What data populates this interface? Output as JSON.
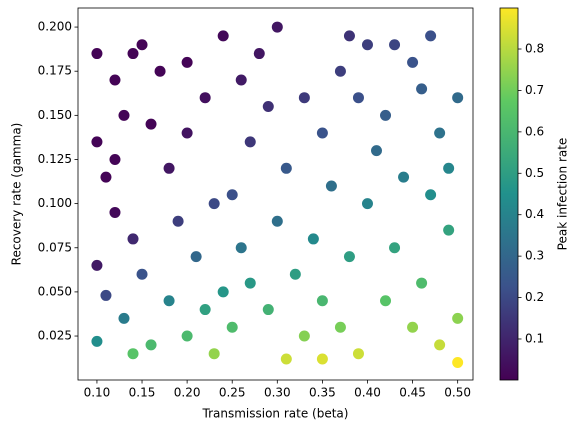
{
  "chart_data": {
    "type": "scatter",
    "x_label": "Transmission rate (beta)",
    "y_label": "Recovery rate (gamma)",
    "colorbar_label": "Peak infection rate",
    "colormap": "viridis",
    "x": [
      0.1,
      0.12,
      0.15,
      0.13,
      0.1,
      0.16,
      0.11,
      0.12,
      0.1,
      0.11,
      0.1,
      0.13,
      0.14,
      0.16,
      0.15,
      0.14,
      0.18,
      0.2,
      0.22,
      0.24,
      0.19,
      0.21,
      0.18,
      0.2,
      0.23,
      0.25,
      0.24,
      0.26,
      0.25,
      0.27,
      0.26,
      0.28,
      0.3,
      0.29,
      0.31,
      0.3,
      0.32,
      0.29,
      0.31,
      0.33,
      0.35,
      0.34,
      0.36,
      0.35,
      0.37,
      0.38,
      0.4,
      0.39,
      0.41,
      0.4,
      0.38,
      0.37,
      0.39,
      0.42,
      0.43,
      0.44,
      0.42,
      0.45,
      0.47,
      0.46,
      0.48,
      0.47,
      0.49,
      0.46,
      0.45,
      0.48,
      0.5,
      0.5,
      0.49,
      0.5,
      0.14,
      0.17,
      0.12,
      0.2,
      0.23,
      0.27,
      0.33,
      0.43,
      0.35,
      0.22
    ],
    "values": [
      0.185,
      0.17,
      0.19,
      0.15,
      0.135,
      0.145,
      0.115,
      0.095,
      0.065,
      0.048,
      0.022,
      0.035,
      0.015,
      0.02,
      0.06,
      0.08,
      0.12,
      0.18,
      0.16,
      0.195,
      0.09,
      0.07,
      0.045,
      0.025,
      0.015,
      0.03,
      0.05,
      0.075,
      0.105,
      0.135,
      0.17,
      0.185,
      0.2,
      0.155,
      0.12,
      0.09,
      0.06,
      0.04,
      0.012,
      0.025,
      0.045,
      0.08,
      0.11,
      0.14,
      0.175,
      0.195,
      0.19,
      0.16,
      0.13,
      0.1,
      0.07,
      0.03,
      0.015,
      0.045,
      0.075,
      0.115,
      0.15,
      0.18,
      0.195,
      0.165,
      0.14,
      0.105,
      0.085,
      0.055,
      0.03,
      0.02,
      0.01,
      0.035,
      0.12,
      0.16,
      0.185,
      0.175,
      0.125,
      0.14,
      0.1,
      0.055,
      0.16,
      0.19,
      0.012,
      0.04
    ],
    "color_values": [
      0.01,
      0.01,
      0.01,
      0.01,
      0.01,
      0.01,
      0.01,
      0.02,
      0.07,
      0.2,
      0.44,
      0.37,
      0.65,
      0.61,
      0.23,
      0.11,
      0.06,
      0.01,
      0.04,
      0.02,
      0.17,
      0.3,
      0.4,
      0.61,
      0.75,
      0.62,
      0.47,
      0.35,
      0.22,
      0.15,
      0.07,
      0.06,
      0.06,
      0.13,
      0.25,
      0.33,
      0.5,
      0.58,
      0.83,
      0.73,
      0.6,
      0.42,
      0.33,
      0.23,
      0.17,
      0.14,
      0.17,
      0.22,
      0.31,
      0.4,
      0.5,
      0.71,
      0.83,
      0.65,
      0.52,
      0.38,
      0.27,
      0.23,
      0.22,
      0.27,
      0.34,
      0.44,
      0.52,
      0.62,
      0.75,
      0.82,
      0.9,
      0.74,
      0.41,
      0.31,
      0.01,
      0.01,
      0.01,
      0.05,
      0.2,
      0.48,
      0.16,
      0.19,
      0.85,
      0.51
    ],
    "xlim": [
      0.079,
      0.517
    ],
    "ylim": [
      0.0001,
      0.2108
    ],
    "clim": [
      0.001,
      0.899
    ],
    "xticks": [
      {
        "value": 0.1,
        "label": "0.10"
      },
      {
        "value": 0.15,
        "label": "0.15"
      },
      {
        "value": 0.2,
        "label": "0.20"
      },
      {
        "value": 0.25,
        "label": "0.25"
      },
      {
        "value": 0.3,
        "label": "0.30"
      },
      {
        "value": 0.35,
        "label": "0.35"
      },
      {
        "value": 0.4,
        "label": "0.40"
      },
      {
        "value": 0.45,
        "label": "0.45"
      },
      {
        "value": 0.5,
        "label": "0.50"
      }
    ],
    "yticks": [
      0.025,
      {
        "value": 0.05,
        "label": "0.050"
      },
      0.075,
      {
        "value": 0.1,
        "label": "0.100"
      },
      0.125,
      {
        "value": 0.15,
        "label": "0.150"
      },
      0.175,
      {
        "value": 0.2,
        "label": "0.200"
      }
    ],
    "cticks": [
      0.1,
      0.2,
      0.3,
      0.4,
      0.5,
      0.6,
      0.7,
      0.8
    ]
  }
}
